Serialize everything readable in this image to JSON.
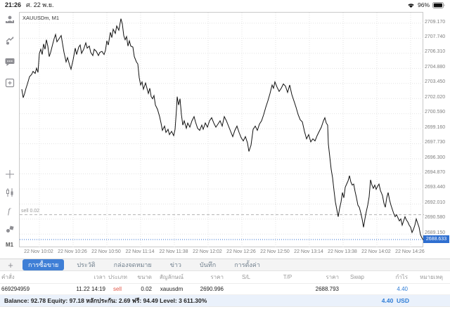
{
  "status": {
    "time": "21:26",
    "date": "ศ. 22 พ.ย.",
    "battery": "96%"
  },
  "sidebar": {
    "top_icons": [
      "account-icon",
      "price-alert-icon",
      "messages-icon",
      "new-window-icon"
    ],
    "bottom_icons": [
      "crosshair-icon",
      "chart-type-icon",
      "indicators-icon",
      "objects-icon"
    ],
    "timeframe": "M1"
  },
  "chart": {
    "symbol_label": "XAUUSDm, M1",
    "current_price": "2688.633",
    "position_line": {
      "label": "sell 0.02",
      "price": 2690.996
    },
    "accent_blue": "#2f6fd0",
    "line_color": "#111111"
  },
  "chart_data": {
    "type": "line",
    "title": "XAUUSDm, M1",
    "ylim": [
      2688.4,
      2710.2
    ],
    "y_ticks": [
      "2709.170",
      "2707.740",
      "2706.310",
      "2704.880",
      "2703.450",
      "2702.020",
      "2700.590",
      "2699.160",
      "2697.730",
      "2696.300",
      "2694.870",
      "2693.440",
      "2692.010",
      "2690.580",
      "2689.150"
    ],
    "x_ticks": [
      "22 Nov 10:02",
      "22 Nov 10:26",
      "22 Nov 10:50",
      "22 Nov 11:14",
      "22 Nov 11:38",
      "22 Nov 12:02",
      "22 Nov 12:26",
      "22 Nov 12:50",
      "22 Nov 13:14",
      "22 Nov 13:38",
      "22 Nov 14:02",
      "22 Nov 14:26"
    ],
    "points": [
      [
        30,
        2702.9
      ],
      [
        32,
        2702.1
      ],
      [
        34,
        2702.5
      ],
      [
        36,
        2703.0
      ],
      [
        38,
        2703.4
      ],
      [
        41,
        2704.1
      ],
      [
        44,
        2704.3
      ],
      [
        46,
        2704.6
      ],
      [
        49,
        2704.4
      ],
      [
        51,
        2704.9
      ],
      [
        53,
        2704.5
      ],
      [
        55,
        2706.3
      ],
      [
        57,
        2706.7
      ],
      [
        59,
        2706.2
      ],
      [
        61,
        2707.2
      ],
      [
        63,
        2706.7
      ],
      [
        65,
        2707.6
      ],
      [
        67,
        2707.0
      ],
      [
        69,
        2706.0
      ],
      [
        71,
        2706.4
      ],
      [
        74,
        2707.2
      ],
      [
        76,
        2707.7
      ],
      [
        78,
        2708.1
      ],
      [
        80,
        2707.4
      ],
      [
        83,
        2707.7
      ],
      [
        86,
        2708.0
      ],
      [
        88,
        2707.2
      ],
      [
        90,
        2706.4
      ],
      [
        93,
        2705.5
      ],
      [
        95,
        2705.9
      ],
      [
        98,
        2705.2
      ],
      [
        100,
        2704.8
      ],
      [
        103,
        2705.7
      ],
      [
        106,
        2706.8
      ],
      [
        108,
        2706.2
      ],
      [
        111,
        2706.9
      ],
      [
        113,
        2707.1
      ],
      [
        115,
        2706.3
      ],
      [
        118,
        2706.7
      ],
      [
        121,
        2707.3
      ],
      [
        123,
        2706.8
      ],
      [
        126,
        2707.0
      ],
      [
        128,
        2706.4
      ],
      [
        131,
        2706.1
      ],
      [
        133,
        2706.7
      ],
      [
        136,
        2706.5
      ],
      [
        139,
        2706.1
      ],
      [
        141,
        2706.4
      ],
      [
        144,
        2706.5
      ],
      [
        147,
        2706.2
      ],
      [
        149,
        2706.6
      ],
      [
        151,
        2707.5
      ],
      [
        153,
        2707.1
      ],
      [
        156,
        2708.3
      ],
      [
        158,
        2707.8
      ],
      [
        160,
        2708.6
      ],
      [
        163,
        2708.2
      ],
      [
        165,
        2708.9
      ],
      [
        168,
        2708.5
      ],
      [
        171,
        2709.6
      ],
      [
        173,
        2709.1
      ],
      [
        175,
        2708.0
      ],
      [
        177,
        2707.6
      ],
      [
        179,
        2707.9
      ],
      [
        181,
        2707.0
      ],
      [
        183,
        2707.5
      ],
      [
        185,
        2707.0
      ],
      [
        188,
        2706.9
      ],
      [
        190,
        2706.0
      ],
      [
        193,
        2705.5
      ],
      [
        195,
        2705.3
      ],
      [
        197,
        2704.0
      ],
      [
        199,
        2703.3
      ],
      [
        201,
        2703.6
      ],
      [
        203,
        2702.9
      ],
      [
        206,
        2703.5
      ],
      [
        208,
        2703.0
      ],
      [
        210,
        2702.5
      ],
      [
        212,
        2703.0
      ],
      [
        214,
        2702.2
      ],
      [
        216,
        2702.0
      ],
      [
        218,
        2702.3
      ],
      [
        220,
        2701.4
      ],
      [
        223,
        2701.0
      ],
      [
        226,
        2700.3
      ],
      [
        228,
        2699.7
      ],
      [
        230,
        2699.0
      ],
      [
        233,
        2699.4
      ],
      [
        235,
        2698.8
      ],
      [
        238,
        2699.1
      ],
      [
        240,
        2698.6
      ],
      [
        243,
        2698.9
      ],
      [
        246,
        2698.5
      ],
      [
        248,
        2699.1
      ],
      [
        250,
        2701.0
      ],
      [
        251,
        2702.2
      ],
      [
        253,
        2701.4
      ],
      [
        255,
        2702.0
      ],
      [
        257,
        2700.5
      ],
      [
        259,
        2699.5
      ],
      [
        261,
        2699.9
      ],
      [
        264,
        2699.2
      ],
      [
        266,
        2699.7
      ],
      [
        269,
        2699.3
      ],
      [
        272,
        2699.9
      ],
      [
        275,
        2700.3
      ],
      [
        277,
        2699.8
      ],
      [
        280,
        2699.2
      ],
      [
        283,
        2699.0
      ],
      [
        286,
        2699.5
      ],
      [
        288,
        2699.1
      ],
      [
        291,
        2699.7
      ],
      [
        294,
        2699.3
      ],
      [
        297,
        2699.9
      ],
      [
        300,
        2700.2
      ],
      [
        303,
        2699.7
      ],
      [
        306,
        2699.3
      ],
      [
        309,
        2699.6
      ],
      [
        312,
        2699.9
      ],
      [
        315,
        2699.4
      ],
      [
        318,
        2700.3
      ],
      [
        321,
        2699.9
      ],
      [
        324,
        2699.4
      ],
      [
        327,
        2698.9
      ],
      [
        330,
        2698.4
      ],
      [
        333,
        2699.0
      ],
      [
        336,
        2699.4
      ],
      [
        339,
        2698.8
      ],
      [
        342,
        2698.3
      ],
      [
        345,
        2698.0
      ],
      [
        348,
        2698.4
      ],
      [
        351,
        2697.8
      ],
      [
        353,
        2697.0
      ],
      [
        356,
        2697.6
      ],
      [
        359,
        2699.1
      ],
      [
        362,
        2699.4
      ],
      [
        365,
        2699.0
      ],
      [
        368,
        2699.6
      ],
      [
        371,
        2699.9
      ],
      [
        374,
        2700.5
      ],
      [
        377,
        2701.2
      ],
      [
        380,
        2701.8
      ],
      [
        383,
        2702.5
      ],
      [
        386,
        2703.3
      ],
      [
        388,
        2703.0
      ],
      [
        390,
        2703.6
      ],
      [
        393,
        2703.1
      ],
      [
        396,
        2702.7
      ],
      [
        399,
        2703.0
      ],
      [
        402,
        2703.4
      ],
      [
        405,
        2703.2
      ],
      [
        408,
        2702.6
      ],
      [
        411,
        2703.3
      ],
      [
        414,
        2702.4
      ],
      [
        417,
        2701.8
      ],
      [
        420,
        2701.2
      ],
      [
        423,
        2700.5
      ],
      [
        426,
        2700.0
      ],
      [
        429,
        2699.8
      ],
      [
        432,
        2698.9
      ],
      [
        435,
        2698.2
      ],
      [
        438,
        2698.6
      ],
      [
        441,
        2697.9
      ],
      [
        444,
        2698.2
      ],
      [
        447,
        2698.0
      ],
      [
        450,
        2698.5
      ],
      [
        453,
        2698.9
      ],
      [
        456,
        2699.3
      ],
      [
        459,
        2699.9
      ],
      [
        461,
        2700.2
      ],
      [
        463,
        2699.7
      ],
      [
        465,
        2699.5
      ],
      [
        466,
        2697.7
      ],
      [
        468,
        2696.5
      ],
      [
        470,
        2695.3
      ],
      [
        472,
        2694.5
      ],
      [
        474,
        2693.3
      ],
      [
        476,
        2692.2
      ],
      [
        478,
        2691.5
      ],
      [
        480,
        2690.8
      ],
      [
        482,
        2691.6
      ],
      [
        484,
        2692.2
      ],
      [
        486,
        2693.1
      ],
      [
        488,
        2692.6
      ],
      [
        490,
        2693.6
      ],
      [
        492,
        2693.9
      ],
      [
        494,
        2694.2
      ],
      [
        496,
        2694.7
      ],
      [
        498,
        2694.1
      ],
      [
        500,
        2693.8
      ],
      [
        502,
        2693.9
      ],
      [
        504,
        2693.2
      ],
      [
        506,
        2692.6
      ],
      [
        508,
        2691.9
      ],
      [
        510,
        2691.7
      ],
      [
        512,
        2691.2
      ],
      [
        514,
        2690.6
      ],
      [
        516,
        2689.8
      ],
      [
        518,
        2690.6
      ],
      [
        520,
        2691.3
      ],
      [
        522,
        2691.9
      ],
      [
        524,
        2692.7
      ],
      [
        526,
        2694.3
      ],
      [
        528,
        2693.8
      ],
      [
        530,
        2693.5
      ],
      [
        532,
        2693.8
      ],
      [
        534,
        2693.4
      ],
      [
        536,
        2693.7
      ],
      [
        538,
        2693.9
      ],
      [
        540,
        2693.3
      ],
      [
        543,
        2692.8
      ],
      [
        545,
        2692.1
      ],
      [
        547,
        2691.7
      ],
      [
        549,
        2692.6
      ],
      [
        551,
        2693.1
      ],
      [
        553,
        2692.4
      ],
      [
        555,
        2691.9
      ],
      [
        557,
        2691.5
      ],
      [
        559,
        2691.1
      ],
      [
        561,
        2690.8
      ],
      [
        563,
        2691.0
      ],
      [
        565,
        2690.7
      ],
      [
        567,
        2690.4
      ],
      [
        569,
        2690.6
      ],
      [
        571,
        2690.0
      ],
      [
        573,
        2690.4
      ],
      [
        575,
        2690.8
      ],
      [
        577,
        2690.5
      ],
      [
        579,
        2690.3
      ],
      [
        581,
        2690.0
      ],
      [
        583,
        2689.8
      ],
      [
        585,
        2689.3
      ],
      [
        587,
        2689.6
      ],
      [
        589,
        2690.0
      ],
      [
        591,
        2690.6
      ],
      [
        593,
        2690.2
      ],
      [
        595,
        2689.8
      ],
      [
        597,
        2689.1
      ],
      [
        599,
        2688.8
      ],
      [
        601,
        2688.6
      ]
    ]
  },
  "tab_bar": {
    "add_label": "+",
    "tabs": [
      "การซื้อขาย",
      "ประวัติ",
      "กล่องจดหมาย",
      "ข่าว",
      "บันทึก",
      "การตั้งค่า"
    ],
    "selected_index": 0
  },
  "trade_table": {
    "headers": [
      "คำสั่ง",
      "เวลา",
      "ประเภท",
      "ขนาด",
      "สัญลักษณ์",
      "ราคา",
      "S/L",
      "T/P",
      "ราคา",
      "Swap",
      "กำไร",
      "หมายเหตุ"
    ],
    "rows": [
      [
        "669294959",
        "11.22 14:19",
        "sell",
        "0.02",
        "xauusdm",
        "2690.996",
        "",
        "",
        "2688.793",
        "",
        "4.40",
        ""
      ]
    ]
  },
  "summary": {
    "text": "Balance: 92.78 Equity: 97.18 หลักประกัน: 2.69 ฟรี: 94.49 Level: 3 611.30%",
    "profit": "4.40",
    "currency": "USD"
  }
}
